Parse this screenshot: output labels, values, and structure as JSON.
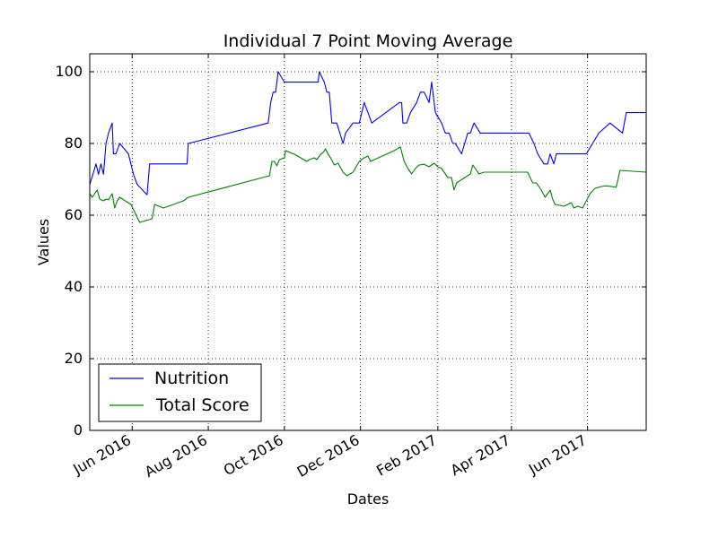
{
  "chart_data": {
    "type": "line",
    "title": "Individual 7 Point Moving Average",
    "xlabel": "Dates",
    "ylabel": "Values",
    "x_range": [
      "2016-04-28",
      "2017-07-18"
    ],
    "ylim": [
      0,
      105
    ],
    "grid": true,
    "legend_position": "lower-left",
    "y_ticks": [
      0,
      20,
      40,
      60,
      80,
      100
    ],
    "x_ticks": [
      {
        "date": "2016-06-01",
        "label": "Jun 2016"
      },
      {
        "date": "2016-08-01",
        "label": "Aug 2016"
      },
      {
        "date": "2016-10-01",
        "label": "Oct 2016"
      },
      {
        "date": "2016-12-01",
        "label": "Dec 2016"
      },
      {
        "date": "2017-02-01",
        "label": "Feb 2017"
      },
      {
        "date": "2017-04-01",
        "label": "Apr 2017"
      },
      {
        "date": "2017-06-01",
        "label": "Jun 2017"
      }
    ],
    "series": [
      {
        "name": "Nutrition",
        "color": "#0000ff",
        "points": [
          [
            "2016-04-28",
            68.5
          ],
          [
            "2016-05-03",
            74.3
          ],
          [
            "2016-05-05",
            71.4
          ],
          [
            "2016-05-07",
            74.3
          ],
          [
            "2016-05-09",
            71.4
          ],
          [
            "2016-05-11",
            80.0
          ],
          [
            "2016-05-13",
            82.9
          ],
          [
            "2016-05-16",
            85.7
          ],
          [
            "2016-05-17",
            77.1
          ],
          [
            "2016-05-19",
            77.1
          ],
          [
            "2016-05-22",
            80.0
          ],
          [
            "2016-05-29",
            77.1
          ],
          [
            "2016-06-02",
            71.4
          ],
          [
            "2016-06-05",
            68.6
          ],
          [
            "2016-06-13",
            65.7
          ],
          [
            "2016-06-15",
            74.3
          ],
          [
            "2016-07-15",
            74.3
          ],
          [
            "2016-07-16",
            80.0
          ],
          [
            "2016-09-18",
            85.7
          ],
          [
            "2016-09-20",
            91.4
          ],
          [
            "2016-09-22",
            94.3
          ],
          [
            "2016-09-24",
            94.3
          ],
          [
            "2016-09-26",
            100.0
          ],
          [
            "2016-10-01",
            97.1
          ],
          [
            "2016-10-28",
            97.1
          ],
          [
            "2016-10-29",
            100.0
          ],
          [
            "2016-11-02",
            97.1
          ],
          [
            "2016-11-04",
            94.3
          ],
          [
            "2016-11-06",
            94.3
          ],
          [
            "2016-11-08",
            85.7
          ],
          [
            "2016-11-12",
            85.7
          ],
          [
            "2016-11-17",
            80.0
          ],
          [
            "2016-11-19",
            82.9
          ],
          [
            "2016-11-25",
            85.7
          ],
          [
            "2016-11-30",
            85.7
          ],
          [
            "2016-12-04",
            91.4
          ],
          [
            "2016-12-07",
            88.6
          ],
          [
            "2016-12-10",
            85.7
          ],
          [
            "2017-01-01",
            91.4
          ],
          [
            "2017-01-03",
            91.4
          ],
          [
            "2017-01-04",
            85.7
          ],
          [
            "2017-01-07",
            85.7
          ],
          [
            "2017-01-10",
            88.6
          ],
          [
            "2017-01-15",
            91.4
          ],
          [
            "2017-01-18",
            94.3
          ],
          [
            "2017-01-21",
            94.3
          ],
          [
            "2017-01-25",
            91.4
          ],
          [
            "2017-01-27",
            97.1
          ],
          [
            "2017-01-30",
            88.6
          ],
          [
            "2017-02-04",
            85.7
          ],
          [
            "2017-02-07",
            82.9
          ],
          [
            "2017-02-10",
            82.9
          ],
          [
            "2017-02-13",
            80.0
          ],
          [
            "2017-02-15",
            80.0
          ],
          [
            "2017-02-20",
            77.1
          ],
          [
            "2017-02-25",
            82.9
          ],
          [
            "2017-02-27",
            82.9
          ],
          [
            "2017-03-02",
            85.7
          ],
          [
            "2017-03-07",
            82.9
          ],
          [
            "2017-04-15",
            82.9
          ],
          [
            "2017-04-19",
            80.0
          ],
          [
            "2017-04-22",
            77.1
          ],
          [
            "2017-04-27",
            74.3
          ],
          [
            "2017-04-30",
            74.3
          ],
          [
            "2017-05-02",
            77.1
          ],
          [
            "2017-05-05",
            74.3
          ],
          [
            "2017-05-07",
            77.1
          ],
          [
            "2017-05-31",
            77.1
          ],
          [
            "2017-06-10",
            82.9
          ],
          [
            "2017-06-19",
            85.7
          ],
          [
            "2017-06-29",
            82.9
          ],
          [
            "2017-07-02",
            88.6
          ],
          [
            "2017-07-18",
            88.6
          ]
        ]
      },
      {
        "name": "Total Score",
        "color": "#008000",
        "points": [
          [
            "2016-04-28",
            66.0
          ],
          [
            "2016-04-30",
            65.0
          ],
          [
            "2016-05-04",
            67.0
          ],
          [
            "2016-05-06",
            64.5
          ],
          [
            "2016-05-09",
            64.0
          ],
          [
            "2016-05-11",
            64.5
          ],
          [
            "2016-05-13",
            64.3
          ],
          [
            "2016-05-16",
            66.0
          ],
          [
            "2016-05-18",
            62.0
          ],
          [
            "2016-05-20",
            64.0
          ],
          [
            "2016-05-22",
            65.0
          ],
          [
            "2016-05-31",
            63.0
          ],
          [
            "2016-06-07",
            58.0
          ],
          [
            "2016-06-17",
            59.0
          ],
          [
            "2016-06-19",
            63.0
          ],
          [
            "2016-06-26",
            62.0
          ],
          [
            "2016-07-12",
            64.0
          ],
          [
            "2016-07-16",
            65.0
          ],
          [
            "2016-09-19",
            71.0
          ],
          [
            "2016-09-21",
            75.0
          ],
          [
            "2016-09-23",
            75.0
          ],
          [
            "2016-09-25",
            73.8
          ],
          [
            "2016-09-27",
            75.5
          ],
          [
            "2016-10-01",
            76.0
          ],
          [
            "2016-10-02",
            78.0
          ],
          [
            "2016-10-09",
            77.0
          ],
          [
            "2016-10-19",
            75.0
          ],
          [
            "2016-10-21",
            75.5
          ],
          [
            "2016-10-25",
            76.0
          ],
          [
            "2016-10-27",
            75.5
          ],
          [
            "2016-10-30",
            77.0
          ],
          [
            "2016-11-01",
            77.5
          ],
          [
            "2016-11-03",
            78.5
          ],
          [
            "2016-11-05",
            77.0
          ],
          [
            "2016-11-07",
            76.0
          ],
          [
            "2016-11-10",
            74.0
          ],
          [
            "2016-11-13",
            74.5
          ],
          [
            "2016-11-17",
            72.0
          ],
          [
            "2016-11-20",
            71.0
          ],
          [
            "2016-11-25",
            72.0
          ],
          [
            "2016-11-30",
            75.0
          ],
          [
            "2016-12-04",
            76.0
          ],
          [
            "2016-12-07",
            76.5
          ],
          [
            "2016-12-09",
            75.0
          ],
          [
            "2016-12-28",
            78.0
          ],
          [
            "2017-01-02",
            79.0
          ],
          [
            "2017-01-05",
            75.0
          ],
          [
            "2017-01-08",
            73.0
          ],
          [
            "2017-01-11",
            71.5
          ],
          [
            "2017-01-14",
            73.0
          ],
          [
            "2017-01-17",
            74.0
          ],
          [
            "2017-01-21",
            74.2
          ],
          [
            "2017-01-25",
            73.5
          ],
          [
            "2017-01-29",
            74.5
          ],
          [
            "2017-02-01",
            73.5
          ],
          [
            "2017-02-04",
            73.0
          ],
          [
            "2017-02-09",
            70.5
          ],
          [
            "2017-02-12",
            70.5
          ],
          [
            "2017-02-14",
            67.0
          ],
          [
            "2017-02-16",
            69.0
          ],
          [
            "2017-02-27",
            71.5
          ],
          [
            "2017-03-01",
            74.0
          ],
          [
            "2017-03-04",
            72.5
          ],
          [
            "2017-03-06",
            71.5
          ],
          [
            "2017-03-10",
            72.0
          ],
          [
            "2017-04-14",
            72.0
          ],
          [
            "2017-04-18",
            69.0
          ],
          [
            "2017-04-21",
            69.0
          ],
          [
            "2017-04-25",
            67.0
          ],
          [
            "2017-04-28",
            65.0
          ],
          [
            "2017-05-02",
            67.0
          ],
          [
            "2017-05-04",
            64.5
          ],
          [
            "2017-05-06",
            63.0
          ],
          [
            "2017-05-13",
            62.5
          ],
          [
            "2017-05-19",
            63.5
          ],
          [
            "2017-05-21",
            62.0
          ],
          [
            "2017-05-24",
            62.5
          ],
          [
            "2017-05-28",
            62.0
          ],
          [
            "2017-06-03",
            66.0
          ],
          [
            "2017-06-07",
            67.5
          ],
          [
            "2017-06-12",
            68.0
          ],
          [
            "2017-06-16",
            68.2
          ],
          [
            "2017-06-24",
            67.8
          ],
          [
            "2017-06-27",
            72.5
          ],
          [
            "2017-07-18",
            72.0
          ]
        ]
      }
    ]
  }
}
